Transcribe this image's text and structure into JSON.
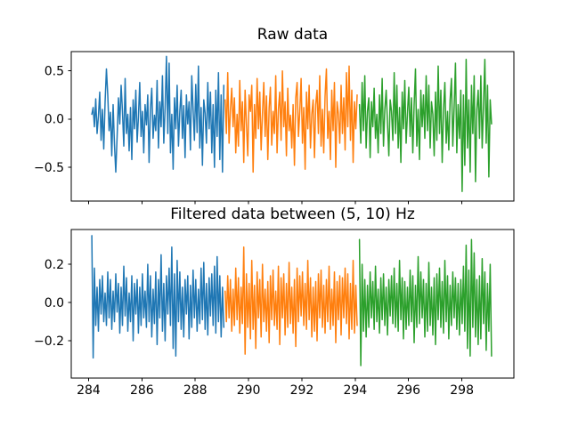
{
  "figure": {
    "background": "#ffffff",
    "frame_color": "#000000",
    "text_color": "#000000"
  },
  "chart_data": [
    {
      "type": "line",
      "title": "Raw data",
      "xlabel": "",
      "ylabel": "",
      "grid": false,
      "legend": "none",
      "xlim": [
        283.35,
        299.95
      ],
      "ylim": [
        -0.85,
        0.7
      ],
      "xticks": {
        "values": [
          284,
          286,
          288,
          290,
          292,
          294,
          296,
          298
        ],
        "labels": [
          "284",
          "286",
          "288",
          "290",
          "292",
          "294",
          "296",
          "298"
        ],
        "labels_visible": false
      },
      "yticks": {
        "values": [
          0.5,
          0.0,
          -0.5
        ],
        "labels": [
          "0.5",
          "0.0",
          "−0.5"
        ],
        "labels_visible": true
      },
      "series": [
        {
          "name": "raw-segment-1",
          "color": "#1f77b4",
          "x_start": 284.12,
          "dt": 0.05,
          "values": [
            0.05,
            0.12,
            -0.08,
            0.21,
            -0.15,
            0.03,
            0.28,
            -0.22,
            0.1,
            -0.31,
            0.18,
            0.52,
            0.25,
            -0.12,
            0.07,
            -0.38,
            0.15,
            -0.26,
            -0.55,
            -0.18,
            0.22,
            -0.05,
            0.35,
            0.08,
            -0.28,
            0.42,
            -0.15,
            0.05,
            -0.33,
            0.12,
            -0.42,
            0.2,
            -0.1,
            0.3,
            -0.24,
            0.02,
            0.38,
            -0.18,
            0.08,
            -0.35,
            0.15,
            -0.06,
            0.25,
            -0.45,
            0.1,
            0.32,
            -0.2,
            0.04,
            -0.12,
            0.4,
            -0.3,
            0.18,
            -0.08,
            0.45,
            -0.25,
            0.12,
            0.65,
            -0.15,
            0.58,
            -0.35,
            0.05,
            -0.52,
            0.22,
            -0.1,
            0.35,
            -0.28,
            0.08,
            0.3,
            -0.2,
            0.14,
            -0.4,
            0.25,
            -0.05,
            0.18,
            -0.32,
            0.45,
            0.1,
            -0.22,
            0.36,
            -0.14,
            0.55,
            -0.3,
            0.12,
            -0.48,
            0.2,
            0.06,
            -0.25,
            0.38,
            -0.1,
            0.28,
            -0.35,
            0.15,
            -0.5,
            0.3,
            -0.18,
            0.48,
            -0.42,
            0.25,
            -0.55,
            0.35
          ]
        },
        {
          "name": "raw-segment-2",
          "color": "#ff7f0e",
          "x_start": 289.12,
          "dt": 0.05,
          "values": [
            0.2,
            -0.15,
            0.48,
            -0.25,
            0.1,
            0.32,
            -0.08,
            0.22,
            -0.35,
            0.05,
            -0.28,
            0.4,
            -0.12,
            0.18,
            -0.45,
            0.3,
            -0.05,
            -0.38,
            0.25,
            0.08,
            0.35,
            -0.55,
            0.15,
            -0.2,
            0.42,
            -0.1,
            0.28,
            -0.32,
            0.06,
            0.38,
            -0.18,
            0.24,
            -0.42,
            0.12,
            0.33,
            -0.27,
            0.08,
            -0.15,
            0.45,
            -0.35,
            0.1,
            0.28,
            -0.22,
            0.5,
            -0.08,
            0.18,
            -0.38,
            0.32,
            -0.12,
            0.04,
            -0.3,
            0.15,
            -0.48,
            0.22,
            0.38,
            -0.18,
            0.08,
            0.42,
            -0.25,
            0.12,
            -0.52,
            0.28,
            -0.1,
            0.35,
            -0.3,
            0.05,
            0.2,
            -0.4,
            0.15,
            0.3,
            -0.15,
            0.45,
            -0.28,
            0.1,
            -0.35,
            0.24,
            0.52,
            -0.2,
            0.08,
            -0.42,
            0.3,
            -0.12,
            0.38,
            -0.5,
            0.18,
            0.05,
            -0.25,
            0.35,
            -0.15,
            0.22,
            -0.32,
            0.48,
            -0.08,
            0.55,
            -0.22,
            0.3,
            -0.45,
            0.18,
            -0.1,
            0.25
          ]
        },
        {
          "name": "raw-segment-3",
          "color": "#2ca02c",
          "x_start": 294.16,
          "dt": 0.05,
          "values": [
            0.15,
            -0.25,
            0.38,
            -0.12,
            0.45,
            -0.3,
            0.08,
            0.22,
            -0.4,
            0.18,
            -0.08,
            0.32,
            -0.2,
            0.05,
            -0.35,
            0.25,
            -0.15,
            0.42,
            -0.28,
            0.1,
            0.3,
            -0.05,
            -0.38,
            0.2,
            0.08,
            -0.22,
            0.48,
            -0.15,
            0.35,
            -0.3,
            0.12,
            -0.45,
            0.28,
            -0.1,
            0.4,
            -0.25,
            0.06,
            0.33,
            -0.18,
            0.22,
            -0.35,
            0.15,
            0.52,
            -0.28,
            0.1,
            -0.42,
            0.3,
            -0.08,
            0.25,
            -0.2,
            0.45,
            -0.12,
            0.35,
            -0.3,
            0.18,
            0.05,
            -0.38,
            0.28,
            -0.22,
            0.55,
            -0.15,
            0.3,
            -0.45,
            0.1,
            0.38,
            -0.25,
            0.08,
            -0.32,
            0.2,
            0.42,
            -0.28,
            0.12,
            0.58,
            -0.35,
            0.15,
            -0.2,
            0.3,
            -0.75,
            0.25,
            -0.48,
            0.62,
            -0.3,
            0.2,
            -0.55,
            0.35,
            -0.15,
            0.45,
            -0.65,
            0.1,
            0.3,
            -0.2,
            0.45,
            -0.3,
            0.15,
            0.62,
            -0.25,
            0.35,
            -0.6,
            0.2,
            -0.05
          ]
        }
      ]
    },
    {
      "type": "line",
      "title": "Filtered data between (5, 10) Hz",
      "xlabel": "",
      "ylabel": "",
      "grid": false,
      "legend": "none",
      "xlim": [
        283.35,
        299.95
      ],
      "ylim": [
        -0.395,
        0.382
      ],
      "xticks": {
        "values": [
          284,
          286,
          288,
          290,
          292,
          294,
          296,
          298
        ],
        "labels": [
          "284",
          "286",
          "288",
          "290",
          "292",
          "294",
          "296",
          "298"
        ],
        "labels_visible": true
      },
      "yticks": {
        "values": [
          0.2,
          0.0,
          -0.2
        ],
        "labels": [
          "0.2",
          "0.0",
          "−0.2"
        ],
        "labels_visible": true
      },
      "series": [
        {
          "name": "filtered-segment-1",
          "color": "#1f77b4",
          "x_start": 284.12,
          "dt": 0.05,
          "values": [
            0.35,
            -0.29,
            0.18,
            -0.12,
            0.08,
            -0.15,
            0.12,
            -0.06,
            0.14,
            -0.1,
            0.05,
            -0.12,
            0.16,
            -0.08,
            0.12,
            -0.14,
            0.06,
            -0.1,
            0.15,
            -0.05,
            0.1,
            -0.16,
            0.08,
            -0.12,
            0.19,
            -0.07,
            0.13,
            -0.15,
            0.05,
            -0.1,
            0.14,
            -0.2,
            0.1,
            -0.06,
            0.12,
            -0.16,
            0.08,
            -0.12,
            0.15,
            -0.08,
            0.06,
            -0.13,
            0.2,
            -0.1,
            0.14,
            -0.18,
            0.07,
            -0.11,
            0.16,
            -0.22,
            0.12,
            -0.08,
            0.25,
            -0.15,
            0.1,
            -0.2,
            0.14,
            -0.06,
            0.18,
            -0.12,
            0.29,
            -0.24,
            0.15,
            -0.28,
            0.22,
            -0.1,
            0.16,
            -0.14,
            0.08,
            -0.18,
            0.12,
            -0.06,
            0.14,
            -0.19,
            0.09,
            -0.13,
            0.17,
            -0.08,
            0.12,
            -0.15,
            0.07,
            -0.11,
            0.18,
            -0.09,
            0.21,
            -0.14,
            0.1,
            -0.17,
            0.13,
            -0.07,
            0.15,
            -0.12,
            0.19,
            -0.16,
            0.24,
            -0.1,
            0.14,
            -0.18,
            0.08,
            -0.13
          ]
        },
        {
          "name": "filtered-segment-2",
          "color": "#ff7f0e",
          "x_start": 289.12,
          "dt": 0.05,
          "values": [
            0.06,
            -0.1,
            0.14,
            -0.08,
            0.12,
            -0.15,
            0.07,
            -0.12,
            0.18,
            -0.09,
            0.13,
            -0.16,
            0.08,
            -0.11,
            0.29,
            -0.27,
            0.15,
            -0.13,
            0.1,
            -0.19,
            0.22,
            -0.14,
            0.09,
            -0.24,
            0.16,
            -0.08,
            0.12,
            -0.18,
            0.2,
            -0.1,
            0.07,
            -0.15,
            0.11,
            -0.21,
            0.14,
            -0.09,
            0.17,
            -0.12,
            0.06,
            -0.14,
            0.19,
            -0.22,
            0.13,
            -0.08,
            0.15,
            -0.17,
            0.1,
            -0.13,
            0.21,
            -0.11,
            0.08,
            -0.16,
            0.12,
            -0.23,
            0.18,
            -0.1,
            0.14,
            -0.07,
            0.16,
            -0.12,
            0.1,
            -0.14,
            0.22,
            -0.09,
            0.13,
            -0.18,
            0.08,
            -0.15,
            0.11,
            -0.2,
            0.15,
            -0.08,
            0.17,
            -0.13,
            0.09,
            -0.16,
            0.12,
            -0.1,
            0.19,
            -0.14,
            0.07,
            -0.12,
            0.16,
            -0.21,
            0.11,
            -0.09,
            0.14,
            -0.17,
            0.13,
            -0.08,
            0.18,
            -0.11,
            0.15,
            -0.19,
            0.1,
            -0.14,
            0.22,
            -0.16,
            0.09,
            -0.12
          ]
        },
        {
          "name": "filtered-segment-3",
          "color": "#2ca02c",
          "x_start": 294.16,
          "dt": 0.05,
          "values": [
            0.33,
            -0.33,
            0.2,
            -0.15,
            0.12,
            -0.18,
            0.09,
            -0.13,
            0.16,
            -0.08,
            0.11,
            -0.14,
            0.19,
            -0.1,
            0.07,
            -0.16,
            0.13,
            -0.09,
            0.15,
            -0.12,
            0.08,
            -0.17,
            0.12,
            -0.07,
            0.14,
            -0.11,
            0.18,
            -0.13,
            0.1,
            -0.15,
            0.22,
            -0.09,
            0.13,
            -0.19,
            0.11,
            -0.14,
            0.08,
            -0.12,
            0.17,
            -0.1,
            0.14,
            -0.21,
            0.09,
            -0.13,
            0.24,
            -0.11,
            0.16,
            -0.08,
            0.12,
            -0.18,
            0.1,
            -0.15,
            0.21,
            -0.12,
            0.08,
            -0.17,
            0.13,
            -0.22,
            0.15,
            -0.09,
            0.18,
            -0.13,
            0.11,
            -0.16,
            0.22,
            -0.1,
            0.14,
            -0.19,
            0.09,
            -0.12,
            0.16,
            -0.08,
            0.13,
            -0.14,
            0.1,
            -0.17,
            0.12,
            -0.11,
            0.19,
            -0.15,
            0.3,
            -0.24,
            0.17,
            -0.28,
            0.33,
            -0.13,
            0.26,
            -0.18,
            0.12,
            -0.22,
            0.14,
            -0.19,
            0.23,
            -0.11,
            0.16,
            -0.25,
            0.1,
            -0.15,
            0.2,
            -0.28
          ]
        }
      ]
    }
  ]
}
